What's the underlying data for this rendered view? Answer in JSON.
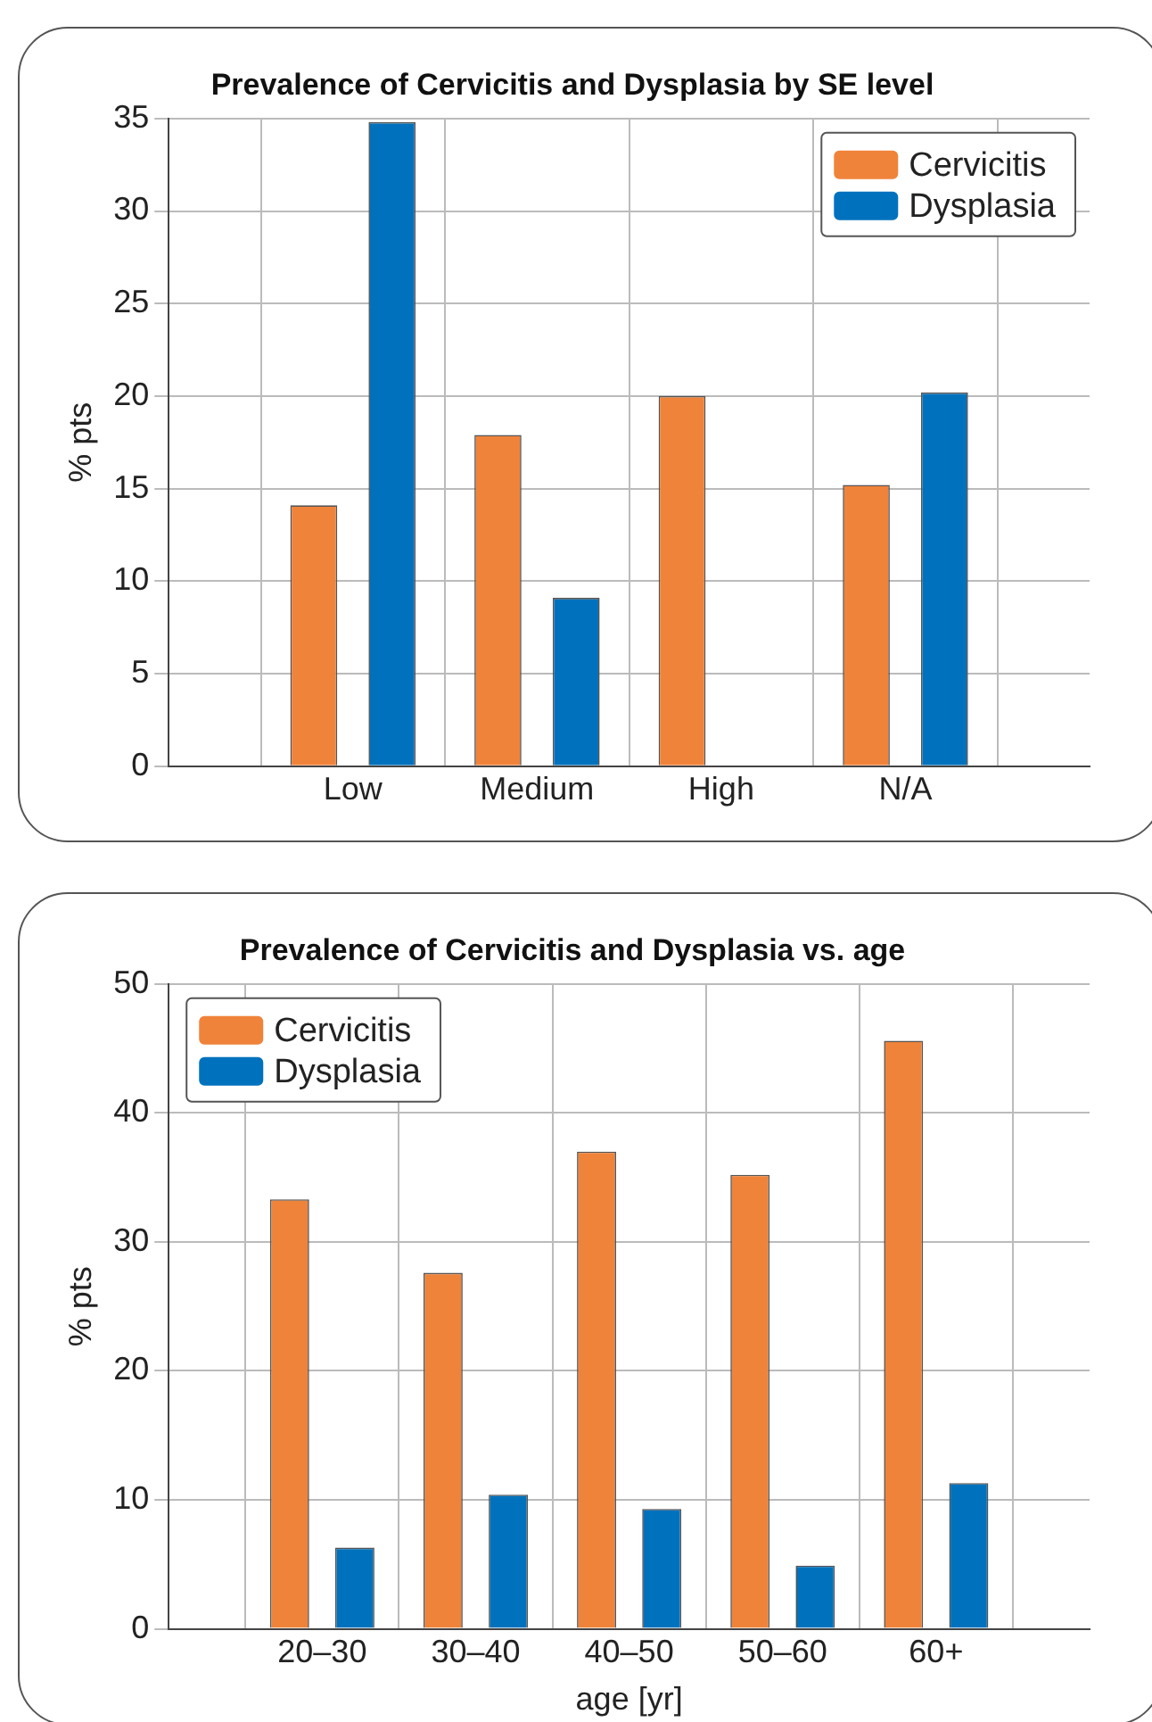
{
  "chart_data": [
    {
      "type": "bar",
      "title": "Prevalence of Cervicitis and Dysplasia by SE level",
      "ylabel": "% pts",
      "categories": [
        "Low",
        "Medium",
        "High",
        "N/A"
      ],
      "series": [
        {
          "name": "Cervicitis",
          "color": "#f0833a",
          "values": [
            14.1,
            17.9,
            20.0,
            15.2
          ]
        },
        {
          "name": "Dysplasia",
          "color": "#0072bd",
          "values": [
            34.8,
            9.1,
            0,
            20.2
          ]
        }
      ],
      "ylim": [
        0,
        35
      ],
      "yticks": [
        0,
        5,
        10,
        15,
        20,
        25,
        30,
        35
      ],
      "grid": true,
      "legend": "top right"
    },
    {
      "type": "bar",
      "title": "Prevalence of Cervicitis and Dysplasia vs. age",
      "xlabel": "age [yr]",
      "ylabel": "% pts",
      "categories": [
        "20–30",
        "30–40",
        "40–50",
        "50–60",
        "60+"
      ],
      "series": [
        {
          "name": "Cervicitis",
          "color": "#f0833a",
          "values": [
            33.3,
            27.6,
            37.0,
            35.2,
            45.6
          ]
        },
        {
          "name": "Dysplasia",
          "color": "#0072bd",
          "values": [
            6.3,
            10.4,
            9.3,
            4.9,
            11.3
          ]
        }
      ],
      "ylim": [
        0,
        50
      ],
      "yticks": [
        0,
        10,
        20,
        30,
        40,
        50
      ],
      "grid": true,
      "legend": "top left"
    }
  ]
}
